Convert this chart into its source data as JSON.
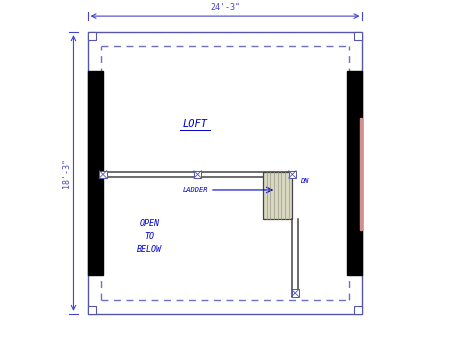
{
  "bg_color": "#ffffff",
  "blue_color": "#0000cc",
  "dim_color": "#4444cc",
  "dash_color": "#7070c0",
  "wall_dark": "#111111",
  "wall_line": "#444444",
  "loft_label": "LOFT",
  "open_below_label": "OPEN\nTO\nBELOW",
  "ladder_label": "LADDER",
  "dn_label": "DN",
  "dim_top": "24'-3\"",
  "dim_left": "18'-3\"",
  "ox": 0.09,
  "oy": 0.08,
  "ow": 0.82,
  "oh": 0.84
}
